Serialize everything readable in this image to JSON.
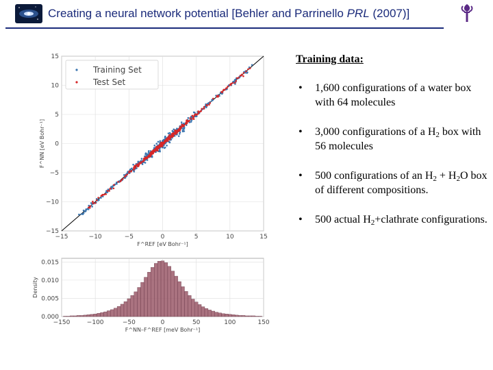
{
  "header": {
    "title_pre": "Creating a neural network potential [Behler and Parrinello ",
    "title_journal": "PRL",
    "title_post": " (2007)]"
  },
  "slide": {
    "panel_title": "Training data:",
    "bullets": [
      {
        "marker": "•",
        "parts": [
          {
            "t": "1,600 configurations of a water box with 64 molecules"
          }
        ]
      },
      {
        "marker": "•",
        "parts": [
          {
            "t": "3,000 configurations of a H"
          },
          {
            "sub": "2"
          },
          {
            "t": " box with 56 molecules"
          }
        ]
      },
      {
        "marker": "•",
        "parts": [
          {
            "t": "500 configurations of an H"
          },
          {
            "sub": "2"
          },
          {
            "t": " + H"
          },
          {
            "sub": "2"
          },
          {
            "t": "O box of different compositions."
          }
        ]
      },
      {
        "marker": "•",
        "parts": [
          {
            "t": "500 actual H"
          },
          {
            "sub": "2"
          },
          {
            "t": "+clathrate configurations."
          }
        ]
      }
    ]
  },
  "chart_data": [
    {
      "type": "scatter",
      "series": [
        {
          "name": "Training Set",
          "color": "#3b76b0"
        },
        {
          "name": "Test Set",
          "color": "#d62728"
        }
      ],
      "xlim": [
        -15,
        15
      ],
      "ylim": [
        -15,
        15
      ],
      "xticks": [
        "−15",
        "−10",
        "−5",
        "0",
        "5",
        "10",
        "15"
      ],
      "yticks": [
        "−15",
        "−10",
        "−5",
        "0",
        "5",
        "10",
        "15"
      ],
      "xlabel": "F^REF [eV Bohr⁻¹]",
      "ylabel": "F^NN [eV Bohr⁻¹]",
      "reference_line": "y = x",
      "grid": true,
      "legend": "top-left"
    },
    {
      "type": "bar",
      "color": "#9b5a6a",
      "xlim": [
        -150,
        150
      ],
      "ylim": [
        0,
        0.016
      ],
      "xticks": [
        "−150",
        "−100",
        "−50",
        "0",
        "50",
        "100",
        "150"
      ],
      "yticks": [
        "0.000",
        "0.005",
        "0.010",
        "0.015"
      ],
      "xlabel": "F^NN–F^REF [meV Bohr⁻¹]",
      "ylabel": "Density",
      "grid": true,
      "bin_centers": [
        -145,
        -140,
        -135,
        -130,
        -125,
        -120,
        -115,
        -110,
        -105,
        -100,
        -95,
        -90,
        -85,
        -80,
        -75,
        -70,
        -65,
        -60,
        -55,
        -50,
        -45,
        -40,
        -35,
        -30,
        -25,
        -20,
        -15,
        -10,
        -5,
        0,
        5,
        10,
        15,
        20,
        25,
        30,
        35,
        40,
        45,
        50,
        55,
        60,
        65,
        70,
        75,
        80,
        85,
        90,
        95,
        100,
        105,
        110,
        115,
        120,
        125,
        130,
        135,
        140,
        145
      ],
      "values": [
        0.0001,
        0.0001,
        0.0002,
        0.0002,
        0.0003,
        0.0003,
        0.0004,
        0.0005,
        0.0006,
        0.0007,
        0.0009,
        0.0011,
        0.0013,
        0.0016,
        0.0019,
        0.0023,
        0.0028,
        0.0034,
        0.0041,
        0.0049,
        0.0058,
        0.0068,
        0.008,
        0.0094,
        0.0108,
        0.0122,
        0.0135,
        0.0146,
        0.0152,
        0.0153,
        0.0148,
        0.0138,
        0.0125,
        0.0111,
        0.0096,
        0.0082,
        0.0069,
        0.0058,
        0.0048,
        0.004,
        0.0033,
        0.0027,
        0.0022,
        0.0018,
        0.0015,
        0.0012,
        0.001,
        0.0008,
        0.0007,
        0.0006,
        0.0005,
        0.0004,
        0.0003,
        0.0003,
        0.0002,
        0.0002,
        0.0002,
        0.0001,
        0.0001
      ]
    }
  ]
}
